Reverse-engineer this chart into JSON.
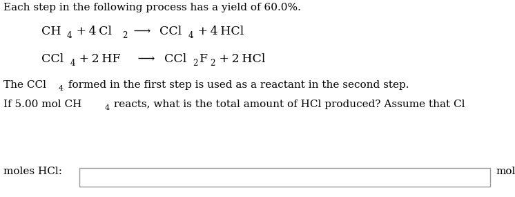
{
  "bg_color": "#ffffff",
  "text_color": "#000000",
  "line1": "Each step in the following process has a yield of 60.0%.",
  "moles_label": "moles HCl:",
  "mol_label": "mol",
  "fs_eq": 12.5,
  "fs_sub": 8.5,
  "fs_body": 11.0,
  "fs_body_sub": 8.0
}
